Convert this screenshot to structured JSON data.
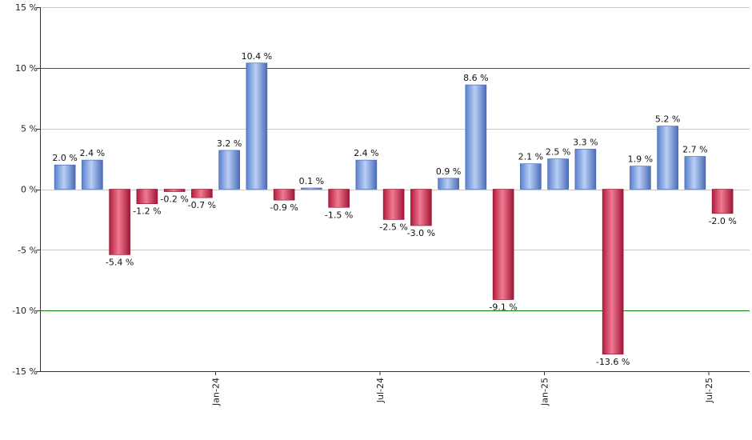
{
  "chart_data": {
    "type": "bar",
    "title": "",
    "xlabel": "",
    "ylabel": "",
    "ylim": [
      -15,
      15
    ],
    "yticks": [
      15,
      10,
      5,
      0,
      -5,
      -10,
      -15
    ],
    "ytick_labels": [
      "15 %",
      "10 %",
      "5 %",
      "0 %",
      "-5 %",
      "-10 %",
      "-15 %"
    ],
    "highlight_gridlines": [
      10,
      -10
    ],
    "values": [
      2.0,
      2.4,
      -5.4,
      -1.2,
      -0.2,
      -0.7,
      3.2,
      10.4,
      -0.9,
      0.1,
      -1.5,
      2.4,
      -2.5,
      -3.0,
      0.9,
      8.6,
      -9.1,
      2.1,
      2.5,
      3.3,
      -13.6,
      1.9,
      5.2,
      2.7,
      -2.0
    ],
    "value_labels": [
      "2.0 %",
      "2.4 %",
      "-5.4 %",
      "-1.2 %",
      "-0.2 %",
      "-0.7 %",
      "3.2 %",
      "10.4 %",
      "-0.9 %",
      "0.1 %",
      "-1.5 %",
      "2.4 %",
      "-2.5 %",
      "-3.0 %",
      "0.9 %",
      "8.6 %",
      "-9.1 %",
      "2.1 %",
      "2.5 %",
      "3.3 %",
      "-13.6 %",
      "1.9 %",
      "5.2 %",
      "2.7 %",
      "-2.0 %"
    ],
    "x_tick_labels": [
      {
        "label": "Jan-24",
        "between": [
          5,
          6
        ]
      },
      {
        "label": "Jul-24",
        "between": [
          11,
          12
        ]
      },
      {
        "label": "Jan-25",
        "between": [
          17,
          18
        ]
      },
      {
        "label": "Jul-25",
        "between": [
          23,
          24
        ]
      }
    ],
    "colors": {
      "positive": "#7b9fe0",
      "negative": "#d2304f",
      "grid": "#c8c8c8",
      "highlight_grid": "#0a7a0a",
      "axis": "#333333"
    }
  }
}
